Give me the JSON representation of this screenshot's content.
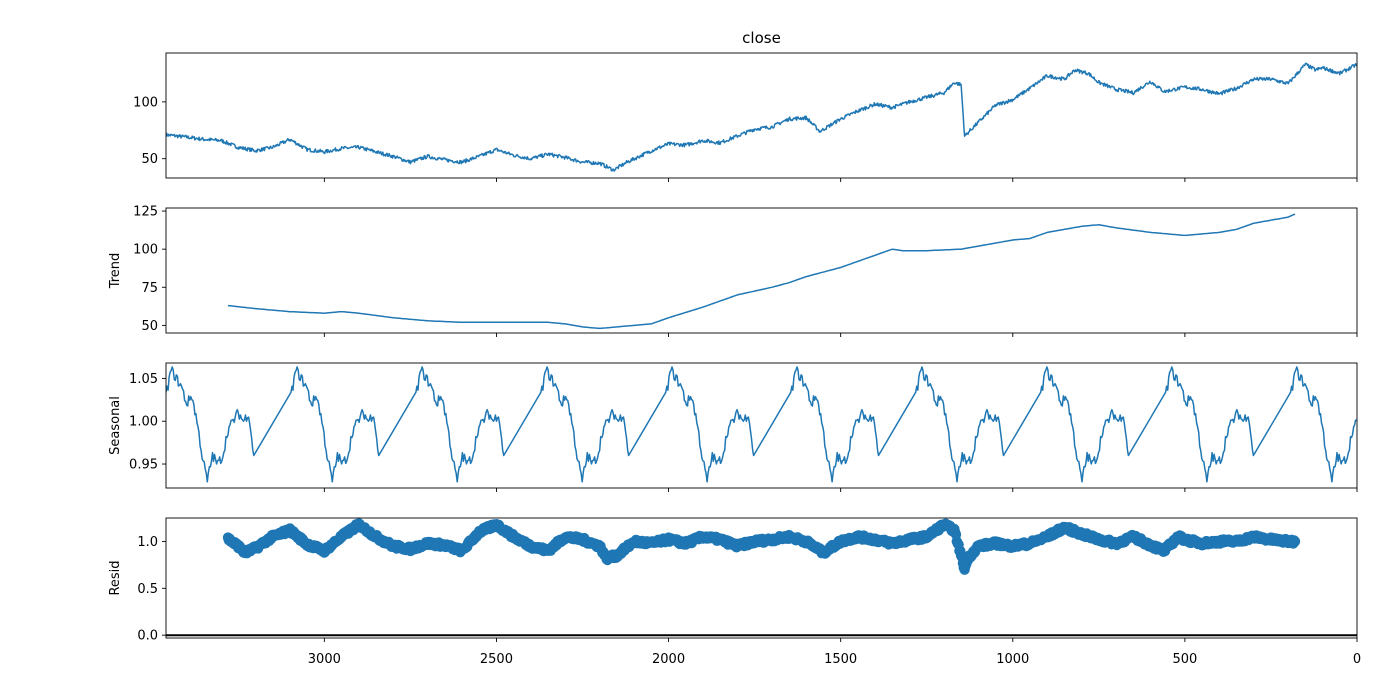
{
  "chart_data": [
    {
      "type": "line",
      "title": "close",
      "ylabel": "",
      "xlim": [
        3460,
        0
      ],
      "ylim": [
        33,
        143
      ],
      "yticks": [
        50,
        100
      ],
      "color": "#1f77b4",
      "x": [
        3460,
        3400,
        3350,
        3300,
        3250,
        3200,
        3150,
        3100,
        3050,
        3000,
        2950,
        2900,
        2850,
        2800,
        2750,
        2700,
        2650,
        2600,
        2550,
        2500,
        2450,
        2400,
        2350,
        2300,
        2250,
        2200,
        2160,
        2120,
        2050,
        2000,
        1950,
        1900,
        1850,
        1800,
        1750,
        1700,
        1650,
        1600,
        1560,
        1500,
        1450,
        1400,
        1350,
        1300,
        1250,
        1200,
        1170,
        1150,
        1140,
        1100,
        1050,
        1000,
        950,
        900,
        850,
        820,
        780,
        750,
        700,
        650,
        600,
        560,
        500,
        450,
        400,
        350,
        300,
        250,
        200,
        150,
        120,
        100,
        50,
        0
      ],
      "values": [
        71,
        69,
        67,
        66,
        60,
        57,
        60,
        67,
        58,
        56,
        59,
        60,
        56,
        52,
        47,
        52,
        49,
        47,
        52,
        58,
        53,
        50,
        54,
        51,
        47,
        46,
        40,
        47,
        57,
        63,
        62,
        66,
        64,
        70,
        76,
        78,
        85,
        86,
        74,
        85,
        92,
        98,
        95,
        100,
        104,
        108,
        117,
        115,
        70,
        82,
        97,
        102,
        112,
        123,
        120,
        128,
        125,
        117,
        111,
        108,
        118,
        109,
        113,
        111,
        107,
        112,
        120,
        120,
        116,
        133,
        128,
        130,
        125,
        133
      ]
    },
    {
      "type": "line",
      "title": "",
      "ylabel": "Trend",
      "xlim": [
        3460,
        0
      ],
      "ylim": [
        45,
        127
      ],
      "yticks": [
        50,
        75,
        100,
        125
      ],
      "color": "#1f77b4",
      "x": [
        3280,
        3200,
        3100,
        3000,
        2950,
        2900,
        2800,
        2700,
        2600,
        2500,
        2400,
        2350,
        2300,
        2250,
        2200,
        2150,
        2100,
        2050,
        2000,
        1900,
        1800,
        1700,
        1650,
        1600,
        1500,
        1400,
        1350,
        1320,
        1250,
        1150,
        1100,
        1000,
        950,
        900,
        850,
        800,
        750,
        700,
        600,
        500,
        400,
        350,
        300,
        250,
        200,
        180
      ],
      "values": [
        63,
        61,
        59,
        58,
        59,
        58,
        55,
        53,
        52,
        52,
        52,
        52,
        51,
        49,
        48,
        49,
        50,
        51,
        55,
        62,
        70,
        75,
        78,
        82,
        88,
        96,
        100,
        99,
        99,
        100,
        102,
        106,
        107,
        111,
        113,
        115,
        116,
        114,
        111,
        109,
        111,
        113,
        117,
        119,
        121,
        123
      ]
    },
    {
      "type": "line",
      "title": "",
      "ylabel": "Seasonal",
      "xlim": [
        3460,
        0
      ],
      "ylim": [
        0.922,
        1.068
      ],
      "yticks": [
        0.95,
        1.0,
        1.05
      ],
      "yticklabels": [
        "0.95",
        "1.00",
        "1.05"
      ],
      "color": "#1f77b4",
      "x": [
        3460,
        3445,
        3430,
        3415,
        3400,
        3385,
        3370,
        3355,
        3340,
        3325,
        3310,
        3295,
        3280,
        3265,
        3250,
        3235,
        3220,
        3205
      ],
      "values": [
        1.03,
        1.06,
        1.05,
        1.04,
        1.02,
        1.03,
        1.0,
        0.96,
        0.93,
        0.96,
        0.95,
        0.96,
        0.99,
        1.0,
        1.01,
        1.0,
        1.01,
        0.96
      ],
      "period_days": 363
    },
    {
      "type": "scatter",
      "title": "",
      "ylabel": "Resid",
      "xlabel": "",
      "xlim": [
        3460,
        0
      ],
      "ylim": [
        -0.03,
        1.25
      ],
      "yticks": [
        0.0,
        0.5,
        1.0
      ],
      "yticklabels": [
        "0.0",
        "0.5",
        "1.0"
      ],
      "xticks": [
        3000,
        2500,
        2000,
        1500,
        1000,
        500,
        0
      ],
      "reference_line": 0.0,
      "color": "#1f77b4",
      "x": [
        3280,
        3250,
        3230,
        3200,
        3150,
        3100,
        3050,
        3000,
        2950,
        2900,
        2850,
        2800,
        2750,
        2700,
        2650,
        2600,
        2550,
        2500,
        2450,
        2400,
        2350,
        2300,
        2250,
        2200,
        2180,
        2150,
        2100,
        2050,
        2000,
        1950,
        1900,
        1850,
        1800,
        1750,
        1700,
        1650,
        1600,
        1550,
        1500,
        1450,
        1400,
        1350,
        1300,
        1250,
        1200,
        1170,
        1150,
        1140,
        1130,
        1100,
        1050,
        1000,
        950,
        900,
        850,
        800,
        750,
        700,
        650,
        600,
        560,
        520,
        500,
        450,
        400,
        350,
        300,
        250,
        200,
        180
      ],
      "values": [
        1.03,
        0.95,
        0.88,
        0.93,
        1.05,
        1.12,
        0.97,
        0.9,
        1.05,
        1.18,
        1.05,
        0.95,
        0.92,
        0.98,
        0.96,
        0.9,
        1.1,
        1.18,
        1.05,
        0.95,
        0.9,
        1.05,
        1.02,
        0.95,
        0.82,
        0.85,
        1.0,
        0.98,
        1.02,
        0.98,
        1.05,
        1.02,
        0.95,
        1.0,
        1.02,
        1.05,
        1.0,
        0.88,
        1.0,
        1.05,
        1.02,
        0.98,
        1.02,
        1.05,
        1.18,
        1.12,
        0.85,
        0.7,
        0.82,
        0.95,
        0.98,
        0.95,
        0.98,
        1.05,
        1.15,
        1.08,
        1.02,
        0.98,
        1.05,
        0.96,
        0.9,
        1.05,
        1.02,
        0.98,
        1.0,
        1.0,
        1.05,
        1.02,
        1.0,
        1.0
      ]
    }
  ]
}
